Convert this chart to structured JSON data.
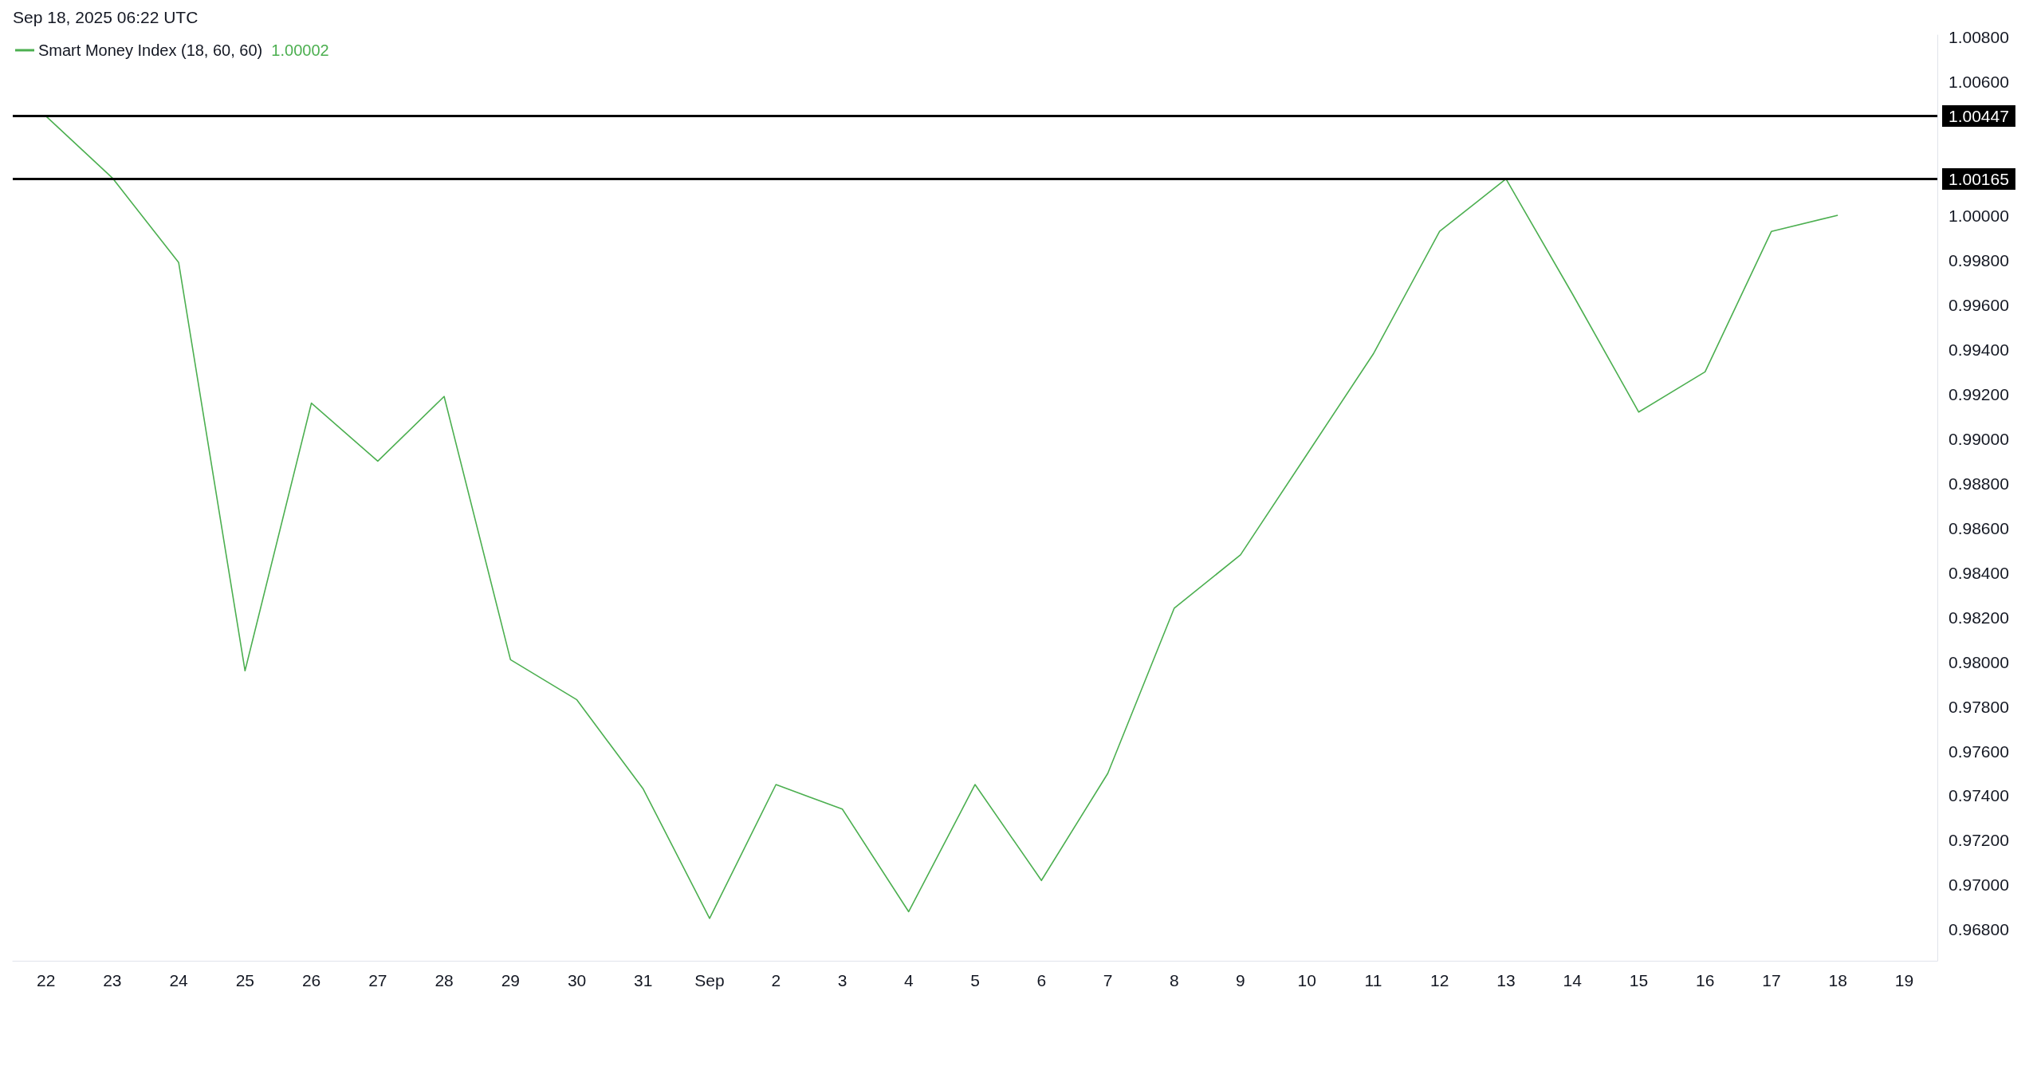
{
  "chart_data": {
    "type": "line",
    "annotations": [
      "Sep 18, 2025 06:22 UTC",
      "1.00002"
    ],
    "categories": [
      "22",
      "23",
      "24",
      "25",
      "26",
      "27",
      "28",
      "29",
      "30",
      "31",
      "Sep",
      "2",
      "3",
      "4",
      "5",
      "6",
      "7",
      "8",
      "9",
      "10",
      "11",
      "12",
      "13",
      "14",
      "15",
      "16",
      "17",
      "18",
      "19"
    ],
    "series": [
      {
        "name": "Smart Money Index (18, 60, 60)",
        "color": "#4caf50",
        "values": [
          1.00447,
          1.0017,
          0.9979,
          0.9796,
          0.9916,
          0.989,
          0.9919,
          0.9801,
          0.9783,
          0.9743,
          0.9685,
          0.9745,
          0.9734,
          0.9688,
          0.9745,
          0.9702,
          0.975,
          0.9824,
          0.9848,
          0.9893,
          0.9938,
          0.9993,
          1.00165,
          0.9965,
          0.9912,
          0.993,
          0.9993,
          1.00002,
          null
        ]
      }
    ],
    "ylim": [
      0.9666,
      1.0081
    ],
    "yticks": [
      {
        "value": 0.968,
        "label": "0.96800"
      },
      {
        "value": 0.97,
        "label": "0.97000"
      },
      {
        "value": 0.972,
        "label": "0.97200"
      },
      {
        "value": 0.974,
        "label": "0.97400"
      },
      {
        "value": 0.976,
        "label": "0.97600"
      },
      {
        "value": 0.978,
        "label": "0.97800"
      },
      {
        "value": 0.98,
        "label": "0.98000"
      },
      {
        "value": 0.982,
        "label": "0.98200"
      },
      {
        "value": 0.984,
        "label": "0.98400"
      },
      {
        "value": 0.986,
        "label": "0.98600"
      },
      {
        "value": 0.988,
        "label": "0.98800"
      },
      {
        "value": 0.99,
        "label": "0.99000"
      },
      {
        "value": 0.992,
        "label": "0.99200"
      },
      {
        "value": 0.994,
        "label": "0.99400"
      },
      {
        "value": 0.996,
        "label": "0.99600"
      },
      {
        "value": 0.998,
        "label": "0.99800"
      },
      {
        "value": 1.0,
        "label": "1.00000"
      },
      {
        "value": 1.006,
        "label": "1.00600"
      },
      {
        "value": 1.008,
        "label": "1.00800"
      }
    ],
    "ref_lines": [
      {
        "axis": "y",
        "value": 1.00447,
        "label": "1.00447",
        "color": "#000000"
      },
      {
        "axis": "y",
        "value": 1.00165,
        "label": "1.00165",
        "color": "#000000"
      }
    ],
    "grid": false,
    "legend": "top left",
    "marker": "none",
    "line_style": "solid"
  }
}
